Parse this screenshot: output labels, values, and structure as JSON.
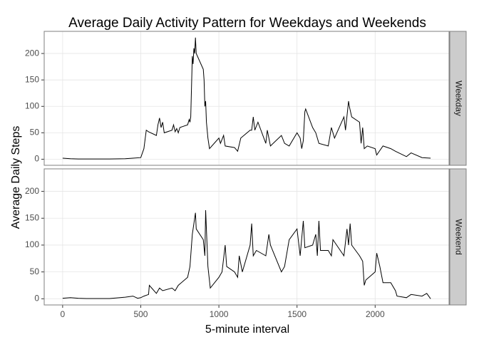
{
  "chart_data": [
    {
      "type": "line",
      "title": "Average Daily Activity Pattern for Weekdays and Weekends",
      "ylabel": "Average Daily Steps",
      "strip": "Weekday",
      "color": "#000000",
      "grid": true,
      "xlim": [
        -118,
        2473
      ],
      "ylim": [
        -11.5,
        241.9
      ],
      "xticks": [
        0,
        500,
        1000,
        1500,
        2000
      ],
      "yticks": [
        0,
        50,
        100,
        150,
        200
      ],
      "x": [
        0,
        50,
        100,
        200,
        300,
        400,
        450,
        500,
        520,
        535,
        550,
        600,
        610,
        620,
        630,
        640,
        650,
        700,
        710,
        720,
        730,
        740,
        750,
        800,
        810,
        815,
        820,
        830,
        835,
        840,
        845,
        850,
        855,
        900,
        905,
        910,
        915,
        920,
        930,
        940,
        1000,
        1010,
        1030,
        1040,
        1100,
        1120,
        1140,
        1200,
        1210,
        1220,
        1230,
        1250,
        1300,
        1310,
        1330,
        1400,
        1420,
        1450,
        1500,
        1520,
        1530,
        1540,
        1550,
        1555,
        1600,
        1620,
        1640,
        1700,
        1720,
        1740,
        1800,
        1810,
        1830,
        1835,
        1850,
        1900,
        1910,
        1920,
        1930,
        1950,
        2000,
        2010,
        2050,
        2100,
        2130,
        2200,
        2230,
        2300,
        2355
      ],
      "values": [
        2,
        1,
        0.5,
        0.5,
        0.5,
        1,
        2,
        3,
        20,
        55,
        52,
        45,
        65,
        78,
        60,
        70,
        50,
        55,
        65,
        52,
        58,
        50,
        60,
        65,
        75,
        70,
        80,
        195,
        180,
        210,
        200,
        230,
        200,
        170,
        150,
        100,
        110,
        70,
        40,
        20,
        40,
        30,
        45,
        25,
        22,
        15,
        40,
        55,
        55,
        80,
        55,
        70,
        30,
        55,
        25,
        45,
        30,
        25,
        50,
        40,
        20,
        35,
        90,
        95,
        60,
        50,
        30,
        25,
        60,
        40,
        80,
        55,
        110,
        100,
        80,
        70,
        30,
        60,
        20,
        25,
        20,
        8,
        25,
        20,
        15,
        5,
        12,
        3,
        2
      ]
    },
    {
      "type": "line",
      "xlabel": "5-minute interval",
      "strip": "Weekend",
      "color": "#000000",
      "grid": true,
      "xlim": [
        -118,
        2473
      ],
      "ylim": [
        -11.5,
        241.9
      ],
      "xticks": [
        0,
        500,
        1000,
        1500,
        2000
      ],
      "yticks": [
        0,
        50,
        100,
        150,
        200
      ],
      "x": [
        0,
        50,
        100,
        150,
        300,
        400,
        450,
        480,
        500,
        520,
        550,
        555,
        600,
        620,
        640,
        700,
        720,
        740,
        800,
        815,
        830,
        840,
        850,
        855,
        900,
        910,
        915,
        930,
        945,
        1000,
        1020,
        1040,
        1050,
        1100,
        1120,
        1130,
        1150,
        1200,
        1210,
        1220,
        1240,
        1300,
        1320,
        1330,
        1400,
        1420,
        1450,
        1500,
        1520,
        1540,
        1550,
        1600,
        1620,
        1630,
        1640,
        1650,
        1700,
        1720,
        1730,
        1800,
        1820,
        1830,
        1840,
        1850,
        1900,
        1920,
        1930,
        1940,
        2000,
        2010,
        2030,
        2050,
        2100,
        2130,
        2140,
        2200,
        2230,
        2300,
        2330,
        2355
      ],
      "values": [
        1,
        2,
        1,
        0.5,
        0.5,
        3,
        5,
        1,
        2,
        5,
        8,
        25,
        10,
        20,
        15,
        20,
        15,
        25,
        40,
        60,
        120,
        140,
        160,
        130,
        110,
        80,
        165,
        60,
        20,
        40,
        50,
        100,
        60,
        50,
        40,
        80,
        50,
        100,
        140,
        80,
        90,
        80,
        120,
        100,
        50,
        60,
        110,
        130,
        80,
        145,
        95,
        100,
        120,
        80,
        145,
        90,
        90,
        80,
        110,
        80,
        130,
        100,
        140,
        100,
        80,
        70,
        25,
        35,
        50,
        85,
        60,
        30,
        30,
        15,
        5,
        2,
        8,
        5,
        10,
        0
      ]
    }
  ]
}
